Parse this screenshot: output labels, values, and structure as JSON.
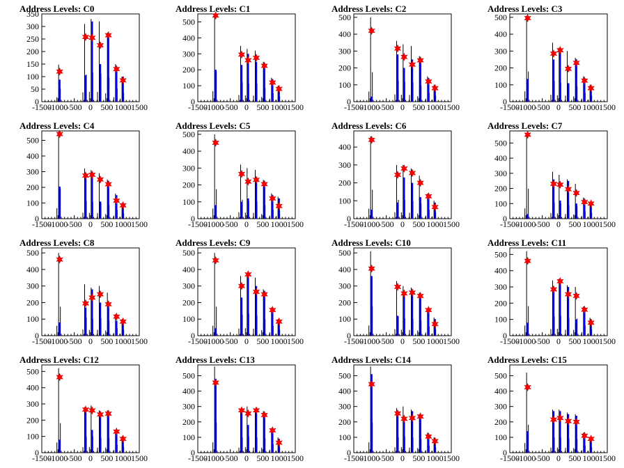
{
  "chart_data": [
    {
      "title": "Address Levels: C0",
      "type": "bar",
      "xlim": [
        -1500,
        1500
      ],
      "ylim": [
        0,
        350
      ],
      "yticks": [
        0,
        50,
        100,
        150,
        200,
        250,
        300,
        350
      ],
      "xticks": [
        -1500,
        -1000,
        -500,
        0,
        500,
        1000,
        1500
      ],
      "peaks": [
        {
          "x": -950,
          "black": 148,
          "blue": 88,
          "marker": 120
        },
        {
          "x": -150,
          "black": 310,
          "blue": 105,
          "marker": 258
        },
        {
          "x": 50,
          "black": 330,
          "blue": 320,
          "marker": 255
        },
        {
          "x": 300,
          "black": 320,
          "blue": 150,
          "marker": 225
        },
        {
          "x": 550,
          "black": 275,
          "blue": 270,
          "marker": 265
        },
        {
          "x": 800,
          "black": 150,
          "blue": 140,
          "marker": 130
        },
        {
          "x": 1000,
          "black": 100,
          "blue": 100,
          "marker": 85
        }
      ]
    },
    {
      "title": "Address Levels: C1",
      "type": "bar",
      "xlim": [
        -1500,
        1500
      ],
      "ylim": [
        0,
        550
      ],
      "yticks": [
        0,
        100,
        200,
        300,
        400,
        500
      ],
      "xticks": [
        -1500,
        -1000,
        -500,
        0,
        500,
        1000,
        1500
      ],
      "peaks": [
        {
          "x": -950,
          "black": 550,
          "blue": 200,
          "marker": 540
        },
        {
          "x": -150,
          "black": 350,
          "blue": 230,
          "marker": 295
        },
        {
          "x": 50,
          "black": 330,
          "blue": 300,
          "marker": 260
        },
        {
          "x": 300,
          "black": 320,
          "blue": 250,
          "marker": 275
        },
        {
          "x": 550,
          "black": 250,
          "blue": 240,
          "marker": 225
        },
        {
          "x": 800,
          "black": 150,
          "blue": 140,
          "marker": 120
        },
        {
          "x": 1000,
          "black": 100,
          "blue": 90,
          "marker": 80
        }
      ]
    },
    {
      "title": "Address Levels: C2",
      "type": "bar",
      "xlim": [
        -1500,
        1500
      ],
      "ylim": [
        0,
        520
      ],
      "yticks": [
        0,
        100,
        200,
        300,
        400,
        500
      ],
      "xticks": [
        -1500,
        -1000,
        -500,
        0,
        500,
        1000,
        1500
      ],
      "peaks": [
        {
          "x": -950,
          "black": 500,
          "blue": 30,
          "marker": 420
        },
        {
          "x": -150,
          "black": 360,
          "blue": 280,
          "marker": 315
        },
        {
          "x": 50,
          "black": 340,
          "blue": 200,
          "marker": 265
        },
        {
          "x": 300,
          "black": 330,
          "blue": 250,
          "marker": 220
        },
        {
          "x": 550,
          "black": 270,
          "blue": 260,
          "marker": 245
        },
        {
          "x": 800,
          "black": 150,
          "blue": 140,
          "marker": 120
        },
        {
          "x": 1000,
          "black": 100,
          "blue": 90,
          "marker": 80
        }
      ]
    },
    {
      "title": "Address Levels: C3",
      "type": "bar",
      "xlim": [
        -1500,
        1500
      ],
      "ylim": [
        0,
        520
      ],
      "yticks": [
        0,
        100,
        200,
        300,
        400,
        500
      ],
      "xticks": [
        -1500,
        -1000,
        -500,
        0,
        500,
        1000,
        1500
      ],
      "peaks": [
        {
          "x": -950,
          "black": 510,
          "blue": 135,
          "marker": 495
        },
        {
          "x": -150,
          "black": 350,
          "blue": 250,
          "marker": 285
        },
        {
          "x": 50,
          "black": 320,
          "blue": 310,
          "marker": 305
        },
        {
          "x": 300,
          "black": 300,
          "blue": 110,
          "marker": 195
        },
        {
          "x": 550,
          "black": 260,
          "blue": 250,
          "marker": 230
        },
        {
          "x": 800,
          "black": 150,
          "blue": 140,
          "marker": 125
        },
        {
          "x": 1000,
          "black": 100,
          "blue": 90,
          "marker": 80
        }
      ]
    },
    {
      "title": "Address Levels: C4",
      "type": "bar",
      "xlim": [
        -1500,
        1500
      ],
      "ylim": [
        0,
        560
      ],
      "yticks": [
        0,
        100,
        200,
        300,
        400,
        500
      ],
      "xticks": [
        -1500,
        -1000,
        -500,
        0,
        500,
        1000,
        1500
      ],
      "peaks": [
        {
          "x": -950,
          "black": 555,
          "blue": 205,
          "marker": 540
        },
        {
          "x": -150,
          "black": 320,
          "blue": 290,
          "marker": 275
        },
        {
          "x": 50,
          "black": 310,
          "blue": 300,
          "marker": 280
        },
        {
          "x": 300,
          "black": 290,
          "blue": 110,
          "marker": 250
        },
        {
          "x": 550,
          "black": 250,
          "blue": 240,
          "marker": 220
        },
        {
          "x": 800,
          "black": 160,
          "blue": 150,
          "marker": 115
        },
        {
          "x": 1000,
          "black": 100,
          "blue": 90,
          "marker": 85
        }
      ]
    },
    {
      "title": "Address Levels: C5",
      "type": "bar",
      "xlim": [
        -1500,
        1500
      ],
      "ylim": [
        0,
        520
      ],
      "yticks": [
        0,
        100,
        200,
        300,
        400,
        500
      ],
      "xticks": [
        -1500,
        -1000,
        -500,
        0,
        500,
        1000,
        1500
      ],
      "peaks": [
        {
          "x": -950,
          "black": 500,
          "blue": 80,
          "marker": 450
        },
        {
          "x": -150,
          "black": 320,
          "blue": 100,
          "marker": 265
        },
        {
          "x": 50,
          "black": 300,
          "blue": 120,
          "marker": 220
        },
        {
          "x": 300,
          "black": 290,
          "blue": 230,
          "marker": 230
        },
        {
          "x": 550,
          "black": 230,
          "blue": 220,
          "marker": 205
        },
        {
          "x": 800,
          "black": 150,
          "blue": 140,
          "marker": 120
        },
        {
          "x": 1000,
          "black": 130,
          "blue": 120,
          "marker": 75
        }
      ]
    },
    {
      "title": "Address Levels: C6",
      "type": "bar",
      "xlim": [
        -1500,
        1500
      ],
      "ylim": [
        0,
        490
      ],
      "yticks": [
        0,
        100,
        200,
        300,
        400
      ],
      "xticks": [
        -1500,
        -1000,
        -500,
        0,
        500,
        1000,
        1500
      ],
      "peaks": [
        {
          "x": -950,
          "black": 460,
          "blue": 50,
          "marker": 440
        },
        {
          "x": -150,
          "black": 300,
          "blue": 90,
          "marker": 245
        },
        {
          "x": 50,
          "black": 300,
          "blue": 230,
          "marker": 280
        },
        {
          "x": 300,
          "black": 280,
          "blue": 200,
          "marker": 255
        },
        {
          "x": 550,
          "black": 240,
          "blue": 120,
          "marker": 200
        },
        {
          "x": 800,
          "black": 140,
          "blue": 130,
          "marker": 125
        },
        {
          "x": 1000,
          "black": 100,
          "blue": 90,
          "marker": 65
        }
      ]
    },
    {
      "title": "Address Levels: C7",
      "type": "bar",
      "xlim": [
        -1500,
        1500
      ],
      "ylim": [
        0,
        580
      ],
      "yticks": [
        0,
        100,
        200,
        300,
        400,
        500
      ],
      "xticks": [
        -1500,
        -1000,
        -500,
        0,
        500,
        1000,
        1500
      ],
      "peaks": [
        {
          "x": -950,
          "black": 565,
          "blue": 30,
          "marker": 555
        },
        {
          "x": -150,
          "black": 310,
          "blue": 260,
          "marker": 230
        },
        {
          "x": 50,
          "black": 290,
          "blue": 120,
          "marker": 225
        },
        {
          "x": 300,
          "black": 260,
          "blue": 250,
          "marker": 195
        },
        {
          "x": 550,
          "black": 230,
          "blue": 100,
          "marker": 170
        },
        {
          "x": 800,
          "black": 140,
          "blue": 130,
          "marker": 110
        },
        {
          "x": 1000,
          "black": 110,
          "blue": 100,
          "marker": 100
        }
      ]
    },
    {
      "title": "Address Levels: C8",
      "type": "bar",
      "xlim": [
        -1500,
        1500
      ],
      "ylim": [
        0,
        530
      ],
      "yticks": [
        0,
        100,
        200,
        300,
        400,
        500
      ],
      "xticks": [
        -1500,
        -1000,
        -500,
        0,
        500,
        1000,
        1500
      ],
      "peaks": [
        {
          "x": -950,
          "black": 500,
          "blue": 80,
          "marker": 460
        },
        {
          "x": -150,
          "black": 310,
          "blue": 170,
          "marker": 195
        },
        {
          "x": 50,
          "black": 290,
          "blue": 280,
          "marker": 230
        },
        {
          "x": 300,
          "black": 300,
          "blue": 200,
          "marker": 250
        },
        {
          "x": 550,
          "black": 260,
          "blue": 200,
          "marker": 190
        },
        {
          "x": 800,
          "black": 130,
          "blue": 90,
          "marker": 115
        },
        {
          "x": 1000,
          "black": 100,
          "blue": 90,
          "marker": 85
        }
      ]
    },
    {
      "title": "Address Levels: C9",
      "type": "bar",
      "xlim": [
        -1500,
        1500
      ],
      "ylim": [
        0,
        530
      ],
      "yticks": [
        0,
        100,
        200,
        300,
        400,
        500
      ],
      "xticks": [
        -1500,
        -1000,
        -500,
        0,
        500,
        1000,
        1500
      ],
      "peaks": [
        {
          "x": -950,
          "black": 500,
          "blue": 45,
          "marker": 455
        },
        {
          "x": -150,
          "black": 360,
          "blue": 230,
          "marker": 300
        },
        {
          "x": 50,
          "black": 380,
          "blue": 360,
          "marker": 370
        },
        {
          "x": 300,
          "black": 350,
          "blue": 300,
          "marker": 265
        },
        {
          "x": 550,
          "black": 280,
          "blue": 270,
          "marker": 250
        },
        {
          "x": 800,
          "black": 170,
          "blue": 150,
          "marker": 155
        },
        {
          "x": 1000,
          "black": 100,
          "blue": 90,
          "marker": 85
        }
      ]
    },
    {
      "title": "Address Levels: C10",
      "type": "bar",
      "xlim": [
        -1500,
        1500
      ],
      "ylim": [
        0,
        530
      ],
      "yticks": [
        0,
        100,
        200,
        300,
        400,
        500
      ],
      "xticks": [
        -1500,
        -1000,
        -500,
        0,
        500,
        1000,
        1500
      ],
      "peaks": [
        {
          "x": -950,
          "black": 510,
          "blue": 360,
          "marker": 405
        },
        {
          "x": -150,
          "black": 330,
          "blue": 120,
          "marker": 295
        },
        {
          "x": 50,
          "black": 300,
          "blue": 250,
          "marker": 255
        },
        {
          "x": 300,
          "black": 290,
          "blue": 280,
          "marker": 260
        },
        {
          "x": 550,
          "black": 260,
          "blue": 250,
          "marker": 240
        },
        {
          "x": 800,
          "black": 160,
          "blue": 150,
          "marker": 155
        },
        {
          "x": 1000,
          "black": 110,
          "blue": 100,
          "marker": 70
        }
      ]
    },
    {
      "title": "Address Levels: C11",
      "type": "bar",
      "xlim": [
        -1500,
        1500
      ],
      "ylim": [
        0,
        540
      ],
      "yticks": [
        0,
        100,
        200,
        300,
        400,
        500
      ],
      "xticks": [
        -1500,
        -1000,
        -500,
        0,
        500,
        1000,
        1500
      ],
      "peaks": [
        {
          "x": -950,
          "black": 520,
          "blue": 80,
          "marker": 460
        },
        {
          "x": -150,
          "black": 340,
          "blue": 270,
          "marker": 285
        },
        {
          "x": 50,
          "black": 350,
          "blue": 330,
          "marker": 335
        },
        {
          "x": 300,
          "black": 310,
          "blue": 300,
          "marker": 255
        },
        {
          "x": 550,
          "black": 300,
          "blue": 100,
          "marker": 245
        },
        {
          "x": 800,
          "black": 180,
          "blue": 170,
          "marker": 160
        },
        {
          "x": 1000,
          "black": 110,
          "blue": 100,
          "marker": 80
        }
      ]
    },
    {
      "title": "Address Levels: C12",
      "type": "bar",
      "xlim": [
        -1500,
        1500
      ],
      "ylim": [
        0,
        540
      ],
      "yticks": [
        0,
        100,
        200,
        300,
        400,
        500
      ],
      "xticks": [
        -1500,
        -1000,
        -500,
        0,
        500,
        1000,
        1500
      ],
      "peaks": [
        {
          "x": -950,
          "black": 520,
          "blue": 80,
          "marker": 465
        },
        {
          "x": -150,
          "black": 280,
          "blue": 270,
          "marker": 265
        },
        {
          "x": 50,
          "black": 290,
          "blue": 140,
          "marker": 260
        },
        {
          "x": 300,
          "black": 260,
          "blue": 250,
          "marker": 235
        },
        {
          "x": 550,
          "black": 260,
          "blue": 250,
          "marker": 240
        },
        {
          "x": 800,
          "black": 140,
          "blue": 130,
          "marker": 130
        },
        {
          "x": 1000,
          "black": 100,
          "blue": 90,
          "marker": 85
        }
      ]
    },
    {
      "title": "Address Levels: C13",
      "type": "bar",
      "xlim": [
        -1500,
        1500
      ],
      "ylim": [
        0,
        570
      ],
      "yticks": [
        0,
        100,
        200,
        300,
        400,
        500
      ],
      "xticks": [
        -1500,
        -1000,
        -500,
        0,
        500,
        1000,
        1500
      ],
      "peaks": [
        {
          "x": -950,
          "black": 560,
          "blue": 480,
          "marker": 455
        },
        {
          "x": -150,
          "black": 280,
          "blue": 270,
          "marker": 275
        },
        {
          "x": 50,
          "black": 300,
          "blue": 180,
          "marker": 255
        },
        {
          "x": 300,
          "black": 280,
          "blue": 270,
          "marker": 275
        },
        {
          "x": 550,
          "black": 270,
          "blue": 260,
          "marker": 245
        },
        {
          "x": 800,
          "black": 160,
          "blue": 150,
          "marker": 145
        },
        {
          "x": 1000,
          "black": 100,
          "blue": 90,
          "marker": 65
        }
      ]
    },
    {
      "title": "Address Levels: C14",
      "type": "bar",
      "xlim": [
        -1500,
        1500
      ],
      "ylim": [
        0,
        570
      ],
      "yticks": [
        0,
        100,
        200,
        300,
        400,
        500
      ],
      "xticks": [
        -1500,
        -1000,
        -500,
        0,
        500,
        1000,
        1500
      ],
      "peaks": [
        {
          "x": -950,
          "black": 560,
          "blue": 510,
          "marker": 445
        },
        {
          "x": -150,
          "black": 290,
          "blue": 270,
          "marker": 255
        },
        {
          "x": 50,
          "black": 300,
          "blue": 200,
          "marker": 220
        },
        {
          "x": 300,
          "black": 280,
          "blue": 270,
          "marker": 225
        },
        {
          "x": 550,
          "black": 250,
          "blue": 240,
          "marker": 235
        },
        {
          "x": 800,
          "black": 130,
          "blue": 120,
          "marker": 105
        },
        {
          "x": 1000,
          "black": 100,
          "blue": 90,
          "marker": 75
        }
      ]
    },
    {
      "title": "Address Levels: C15",
      "type": "bar",
      "xlim": [
        -1500,
        1500
      ],
      "ylim": [
        0,
        570
      ],
      "yticks": [
        0,
        100,
        200,
        300,
        400,
        500
      ],
      "xticks": [
        -1500,
        -1000,
        -500,
        0,
        500,
        1000,
        1500
      ],
      "peaks": [
        {
          "x": -950,
          "black": 520,
          "blue": 140,
          "marker": 425
        },
        {
          "x": -150,
          "black": 280,
          "blue": 270,
          "marker": 215
        },
        {
          "x": 50,
          "black": 280,
          "blue": 270,
          "marker": 225
        },
        {
          "x": 300,
          "black": 260,
          "blue": 250,
          "marker": 205
        },
        {
          "x": 550,
          "black": 250,
          "blue": 240,
          "marker": 200
        },
        {
          "x": 800,
          "black": 130,
          "blue": 110,
          "marker": 110
        },
        {
          "x": 1000,
          "black": 100,
          "blue": 80,
          "marker": 90
        }
      ]
    }
  ],
  "colors": {
    "spike": "#000000",
    "fill": "#0000ff",
    "marker": "#ff0000",
    "axis": "#000000"
  }
}
